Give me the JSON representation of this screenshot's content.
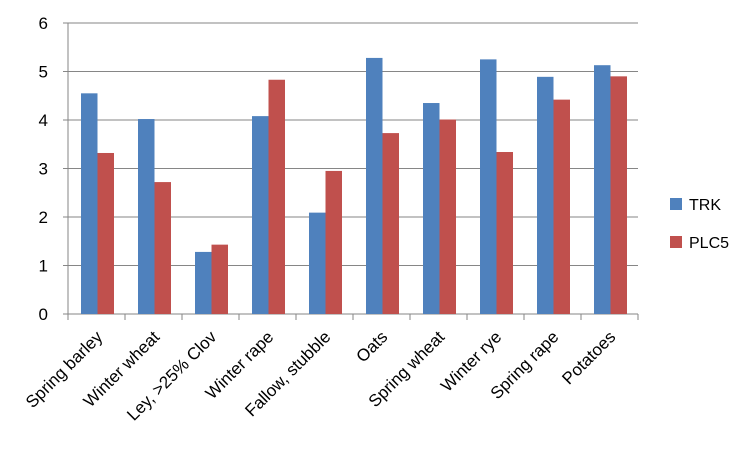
{
  "chart_data": {
    "type": "bar",
    "title": "",
    "xlabel": "",
    "ylabel": "",
    "ylim": [
      0,
      6
    ],
    "yticks": [
      0,
      1,
      2,
      3,
      4,
      5,
      6
    ],
    "grid": "horizontal",
    "legend_position": "right",
    "categories": [
      "Spring barley",
      "Winter wheat",
      "Ley, >25% Clov",
      "Winter rape",
      "Fallow, stubble",
      "Oats",
      "Spring wheat",
      "Winter rye",
      "Spring rape",
      "Potatoes"
    ],
    "series": [
      {
        "name": "TRK",
        "color": "#4F81BD",
        "values": [
          4.55,
          4.02,
          1.28,
          4.08,
          2.09,
          5.28,
          4.35,
          5.25,
          4.89,
          5.13
        ]
      },
      {
        "name": "PLC5",
        "color": "#C0504D",
        "values": [
          3.32,
          2.72,
          1.43,
          4.83,
          2.95,
          3.73,
          4.01,
          3.34,
          4.42,
          4.9
        ]
      }
    ]
  }
}
